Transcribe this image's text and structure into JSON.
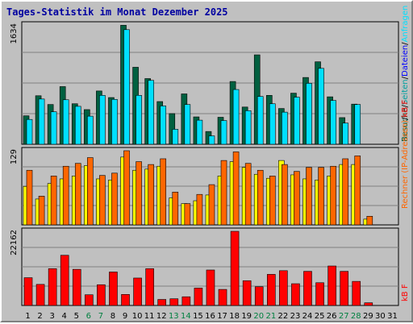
{
  "title": "Tages-Statistik im Monat Dezember 2025",
  "colors": {
    "background": "#c0c0c0",
    "title": "#0000a0",
    "visits": "#006040",
    "pages": "#00a0a0",
    "requests": "#00e0ff",
    "files": "#ff6600",
    "hosts": "#ffff00",
    "kb": "#ff0000",
    "weekday_label": "#000000",
    "weekend_label": "#008040"
  },
  "chart_data": [
    {
      "type": "bar",
      "title": "",
      "ylabel_max": "1634",
      "ymax": 1634,
      "legend": [
        {
          "name": "Besuche",
          "color": "#006040"
        },
        {
          "name": "/",
          "color": "#000000"
        },
        {
          "name": "Seiten",
          "color": "#00a0a0"
        },
        {
          "name": "/",
          "color": "#000000"
        },
        {
          "name": "Dateien",
          "color": "#0000ff"
        },
        {
          "name": "/",
          "color": "#000000"
        },
        {
          "name": "Anfragen",
          "color": "#00e0ff"
        }
      ],
      "categories": [
        "1",
        "2",
        "3",
        "4",
        "5",
        "6",
        "7",
        "8",
        "9",
        "10",
        "11",
        "12",
        "13",
        "14",
        "15",
        "16",
        "17",
        "18",
        "19",
        "20",
        "21",
        "22",
        "23",
        "24",
        "25",
        "26",
        "27",
        "28",
        "29",
        "30",
        "31"
      ],
      "series": [
        {
          "name": "Besuche",
          "values": [
            390,
            665,
            545,
            790,
            555,
            475,
            730,
            640,
            1630,
            1055,
            900,
            585,
            420,
            690,
            375,
            175,
            370,
            860,
            510,
            1225,
            670,
            490,
            700,
            915,
            1130,
            650,
            365,
            550,
            0,
            0,
            0
          ]
        },
        {
          "name": "Anfragen",
          "values": [
            340,
            620,
            445,
            610,
            520,
            385,
            670,
            615,
            1570,
            670,
            875,
            525,
            205,
            545,
            330,
            115,
            325,
            750,
            460,
            655,
            555,
            440,
            645,
            835,
            1040,
            600,
            290,
            545,
            0,
            0,
            0
          ]
        }
      ]
    },
    {
      "type": "bar",
      "title": "",
      "ylabel_max": "129",
      "ymax": 129,
      "legend": [
        {
          "name": "Rechner (IP-Adressen)",
          "color": "#ff6600"
        },
        {
          "name": "/",
          "color": "#000000"
        },
        {
          "name": "kB F",
          "color": "#ff0000"
        }
      ],
      "categories": [
        "1",
        "2",
        "3",
        "4",
        "5",
        "6",
        "7",
        "8",
        "9",
        "10",
        "11",
        "12",
        "13",
        "14",
        "15",
        "16",
        "17",
        "18",
        "19",
        "20",
        "21",
        "22",
        "23",
        "24",
        "25",
        "26",
        "27",
        "28",
        "29",
        "30",
        "31"
      ],
      "series": [
        {
          "name": "Rechner",
          "values": [
            95,
            50,
            85,
            102,
            107,
            117,
            86,
            90,
            129,
            110,
            105,
            115,
            57,
            37,
            53,
            70,
            112,
            127,
            107,
            95,
            85,
            105,
            93,
            100,
            100,
            102,
            115,
            120,
            15,
            0,
            0
          ]
        },
        {
          "name": "Hosts",
          "values": [
            67,
            45,
            72,
            80,
            85,
            103,
            80,
            78,
            118,
            95,
            97,
            102,
            47,
            37,
            42,
            52,
            85,
            110,
            100,
            88,
            81,
            112,
            87,
            80,
            78,
            85,
            105,
            105,
            10,
            0,
            0
          ]
        }
      ]
    },
    {
      "type": "bar",
      "title": "",
      "ylabel_max": "22162",
      "ymax": 22162,
      "legend": [
        {
          "name": "kB F",
          "color": "#ff0000"
        }
      ],
      "categories": [
        "1",
        "2",
        "3",
        "4",
        "5",
        "6",
        "7",
        "8",
        "9",
        "10",
        "11",
        "12",
        "13",
        "14",
        "15",
        "16",
        "17",
        "18",
        "19",
        "20",
        "21",
        "22",
        "23",
        "24",
        "25",
        "26",
        "27",
        "28",
        "29",
        "30",
        "31"
      ],
      "series": [
        {
          "name": "kB F",
          "values": [
            8300,
            6300,
            11000,
            15000,
            10800,
            3200,
            6200,
            10000,
            3300,
            8200,
            11000,
            1800,
            2000,
            2600,
            5200,
            10600,
            4800,
            22162,
            7400,
            5600,
            9300,
            10400,
            6500,
            10200,
            6800,
            11800,
            10200,
            7200,
            800,
            0,
            0
          ]
        }
      ]
    }
  ],
  "x_labels": [
    {
      "text": "1",
      "weekend": false
    },
    {
      "text": "2",
      "weekend": false
    },
    {
      "text": "3",
      "weekend": false
    },
    {
      "text": "4",
      "weekend": false
    },
    {
      "text": "5",
      "weekend": false
    },
    {
      "text": "6",
      "weekend": true
    },
    {
      "text": "7",
      "weekend": true
    },
    {
      "text": "8",
      "weekend": false
    },
    {
      "text": "9",
      "weekend": false
    },
    {
      "text": "10",
      "weekend": false
    },
    {
      "text": "11",
      "weekend": false
    },
    {
      "text": "12",
      "weekend": false
    },
    {
      "text": "13",
      "weekend": true
    },
    {
      "text": "14",
      "weekend": true
    },
    {
      "text": "15",
      "weekend": false
    },
    {
      "text": "16",
      "weekend": false
    },
    {
      "text": "17",
      "weekend": false
    },
    {
      "text": "18",
      "weekend": false
    },
    {
      "text": "19",
      "weekend": false
    },
    {
      "text": "20",
      "weekend": true
    },
    {
      "text": "21",
      "weekend": true
    },
    {
      "text": "22",
      "weekend": false
    },
    {
      "text": "23",
      "weekend": false
    },
    {
      "text": "24",
      "weekend": false
    },
    {
      "text": "25",
      "weekend": false
    },
    {
      "text": "26",
      "weekend": false
    },
    {
      "text": "27",
      "weekend": true
    },
    {
      "text": "28",
      "weekend": true
    },
    {
      "text": "29",
      "weekend": false
    },
    {
      "text": "30",
      "weekend": false
    },
    {
      "text": "31",
      "weekend": false
    }
  ]
}
